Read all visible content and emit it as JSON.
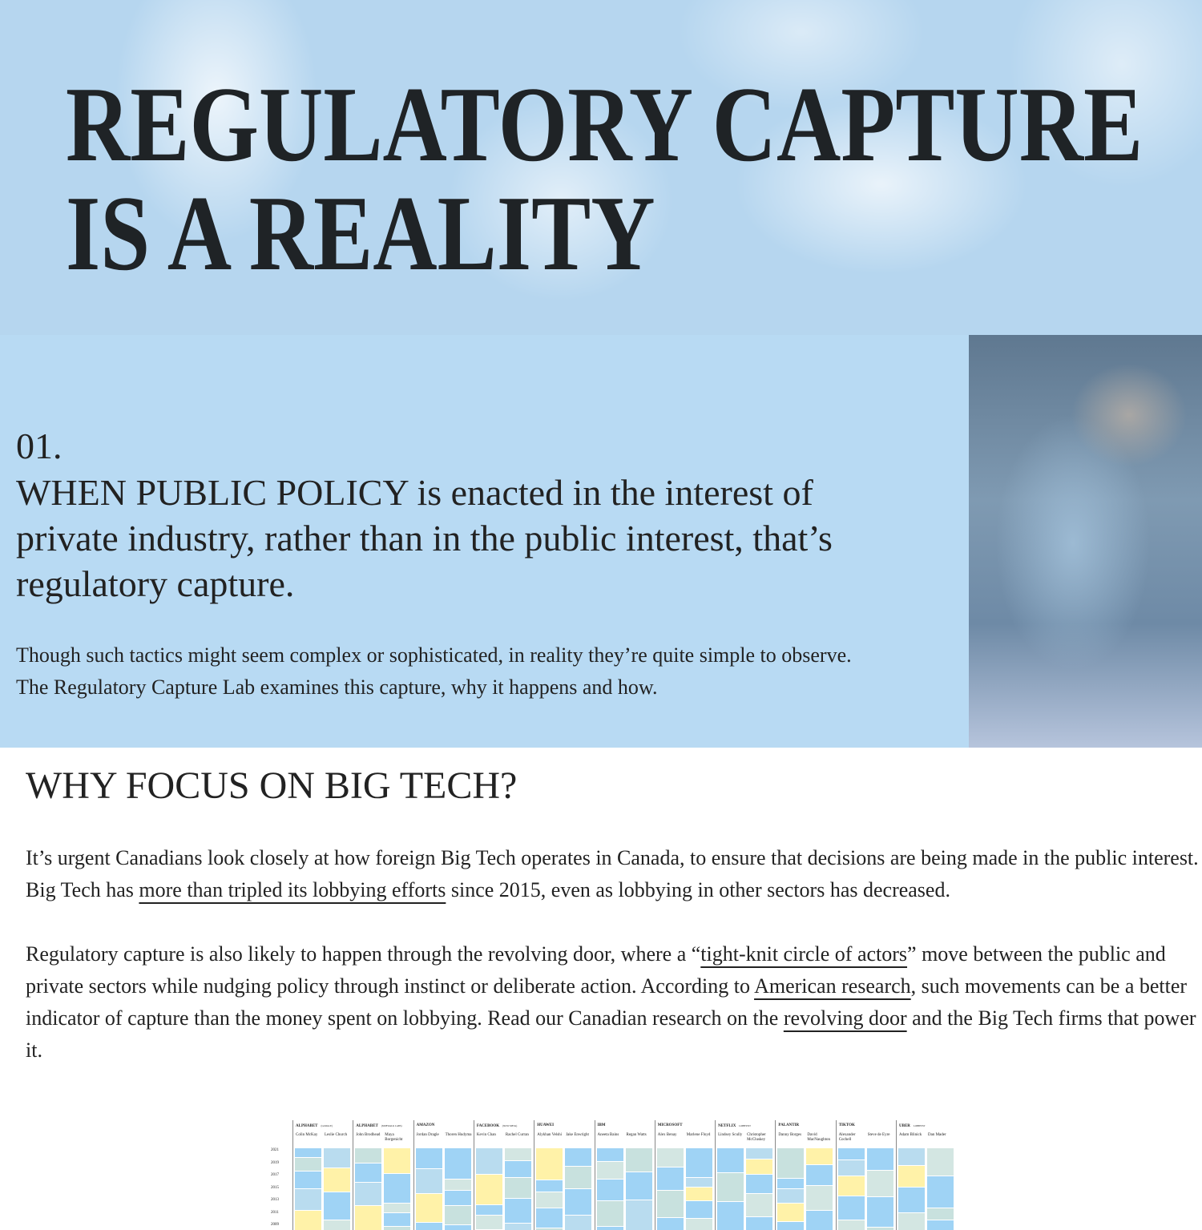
{
  "hero": {
    "title_lines": [
      "REGULATORY CAPTURE",
      "IS A REALITY"
    ]
  },
  "intro": {
    "number": "01.",
    "heading": [
      {
        "text": "WHEN PUBLIC POLICY",
        "caps": true
      },
      {
        "text": " is enacted in the interest of private industry, rather than in the public interest, that’s regulatory capture.",
        "caps": false
      }
    ],
    "body": "Though such tactics might seem complex or sophisticated, in reality they’re quite simple to observe. The Regulatory Capture Lab examines this capture, why it happens and how."
  },
  "why": {
    "heading": "WHY FOCUS ON BIG TECH?",
    "paragraphs": [
      [
        {
          "text": "It’s urgent Canadians look closely at how foreign Big Tech operates in Canada, to ensure that decisions are being made in the public interest. Big Tech has ",
          "link": false
        },
        {
          "text": "more than tripled its lobbying efforts",
          "link": true
        },
        {
          "text": " since 2015, even as lobbying in other sectors has decreased.",
          "link": false
        }
      ],
      [
        {
          "text": "Regulatory capture is also likely to happen through the revolving door, where a “",
          "link": false
        },
        {
          "text": "tight-knit circle of actors",
          "link": true
        },
        {
          "text": "” move between the public and private sectors while nudging policy through instinct or deliberate action. According to ",
          "link": false
        },
        {
          "text": "American research",
          "link": true
        },
        {
          "text": ", such movements can be a better indicator of capture than the money spent on lobbying. Read our Canadian research on the ",
          "link": false
        },
        {
          "text": "revolving door",
          "link": true
        },
        {
          "text": " and the Big Tech firms that power it.",
          "link": false
        }
      ]
    ]
  },
  "figure": {
    "years": [
      "2021",
      "2019",
      "2017",
      "2015",
      "2013",
      "2011",
      "2009"
    ],
    "companies": [
      {
        "name": "ALPHABET",
        "note": "(GOOGLE)",
        "people": [
          "Colin McKay",
          "Leslie Church"
        ]
      },
      {
        "name": "ALPHABET",
        "note": "(SIDEWALK LABS)",
        "people": [
          "John Brodhead",
          "Maya Borgenicht"
        ]
      },
      {
        "name": "AMAZON",
        "note": "",
        "people": [
          "Jordan Dragle",
          "Thoren Hudyma"
        ]
      },
      {
        "name": "FACEBOOK",
        "note": "(NOW META)",
        "people": [
          "Kevin Chan",
          "Rachel Curran"
        ]
      },
      {
        "name": "HUAWEI",
        "note": "",
        "people": [
          "Alykhan Velshi",
          "Jake Enwright"
        ]
      },
      {
        "name": "IBM",
        "note": "",
        "people": [
          "Aneeta Bains",
          "Regan Watts"
        ]
      },
      {
        "name": "MICROSOFT",
        "note": "",
        "people": [
          "Alex Benay",
          "Marlene Floyd"
        ]
      },
      {
        "name": "NETFLIX",
        "note": "LOBBYIST",
        "people": [
          "Lindsey Scully",
          "Christopher McCluskey"
        ]
      },
      {
        "name": "PALANTIR",
        "note": "",
        "people": [
          "Danny Borges",
          "David MacNaughton"
        ]
      },
      {
        "name": "TIKTOK",
        "note": "",
        "people": [
          "Alexander Cochell",
          "Steve de Eyre"
        ]
      },
      {
        "name": "UBER",
        "note": "LOBBYIST",
        "people": [
          "Adam Blinick",
          "Dan Mader"
        ]
      }
    ]
  }
}
